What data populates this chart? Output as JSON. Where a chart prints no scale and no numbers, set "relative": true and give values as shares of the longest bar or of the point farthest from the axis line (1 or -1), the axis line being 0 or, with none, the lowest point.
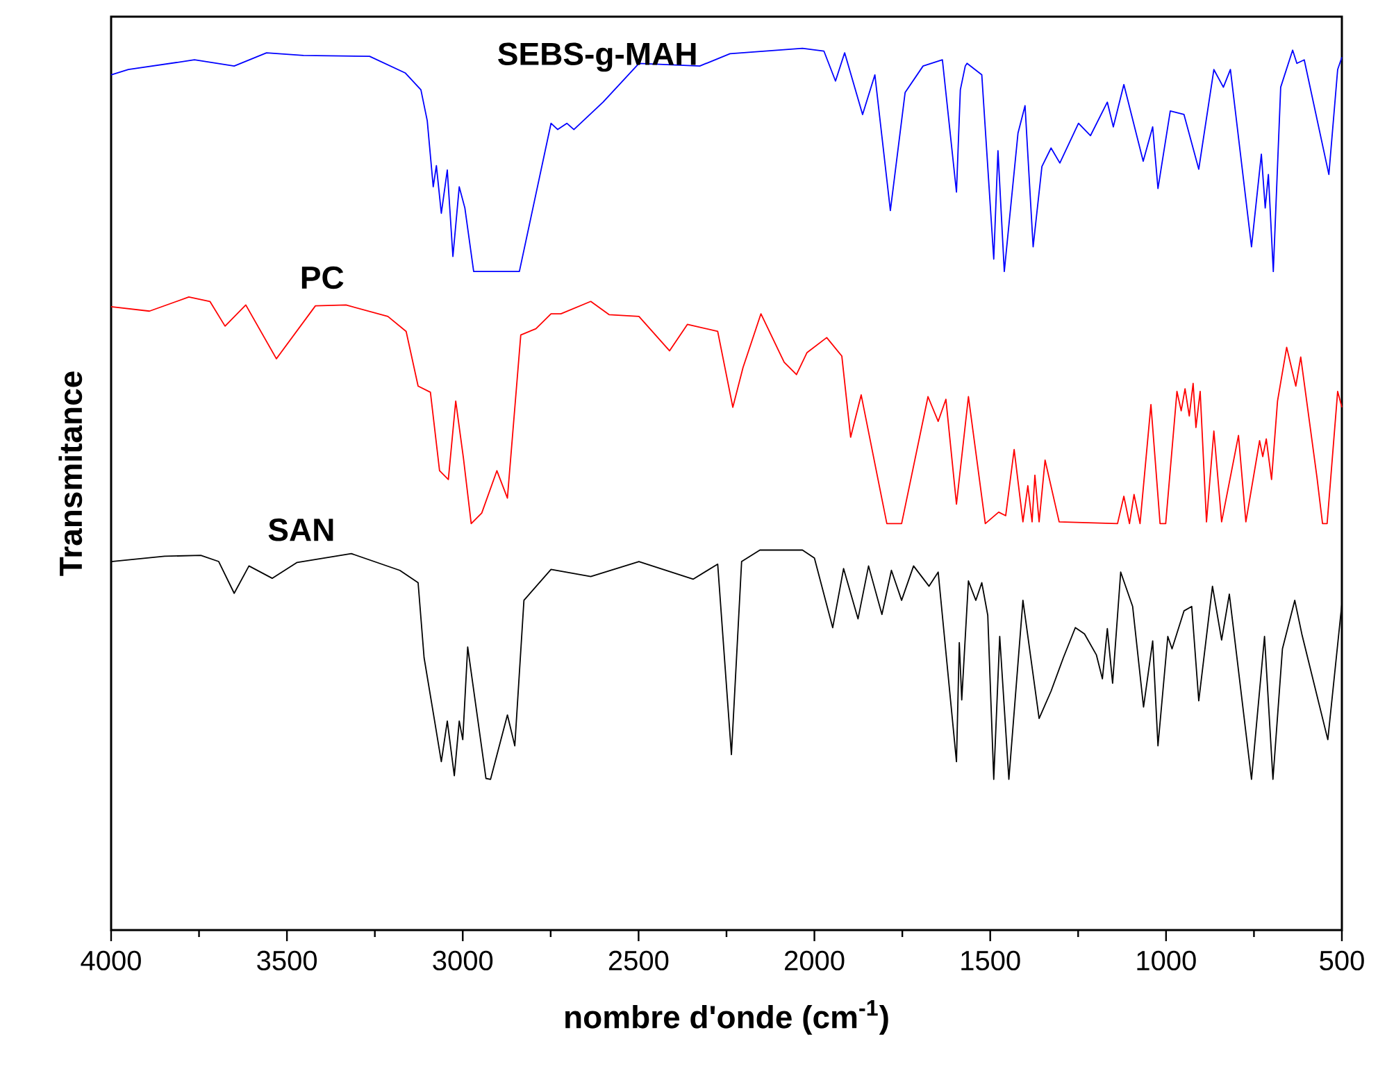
{
  "chart_data": {
    "type": "line",
    "relative": true,
    "xlabel": "nombre d'onde (cm$^{-1}$)",
    "ylabel": "Transmitance",
    "xlim": [
      4000,
      500
    ],
    "xticks": [
      4000,
      3500,
      3000,
      2500,
      2000,
      1500,
      1000,
      500
    ],
    "series": [
      {
        "name": "SEBS-g-MAH",
        "color": "#0000ff",
        "x": [
          4000,
          3951,
          3763,
          3650,
          3558,
          3453,
          3265,
          3163,
          3119,
          3101,
          3084,
          3075,
          3061,
          3044,
          3028,
          3010,
          2994,
          2969,
          2839,
          2749,
          2730,
          2704,
          2684,
          2601,
          2499,
          2326,
          2240,
          2034,
          1973,
          1940,
          1914,
          1863,
          1828,
          1784,
          1742,
          1691,
          1636,
          1596,
          1585,
          1571,
          1566,
          1524,
          1490,
          1478,
          1460,
          1421,
          1401,
          1378,
          1353,
          1327,
          1302,
          1249,
          1215,
          1167,
          1150,
          1120,
          1065,
          1038,
          1023,
          988,
          949,
          907,
          864,
          837,
          817,
          757,
          729,
          718,
          709,
          695,
          674,
          640,
          628,
          607,
          537,
          512,
          500
        ],
        "values": [
          0.97,
          0.976,
          0.987,
          0.98,
          0.995,
          0.992,
          0.991,
          0.972,
          0.953,
          0.918,
          0.843,
          0.867,
          0.813,
          0.862,
          0.764,
          0.843,
          0.819,
          0.747,
          0.747,
          0.915,
          0.908,
          0.915,
          0.908,
          0.939,
          0.983,
          0.98,
          0.994,
          1.0,
          0.997,
          0.963,
          0.995,
          0.925,
          0.97,
          0.816,
          0.95,
          0.98,
          0.987,
          0.837,
          0.953,
          0.98,
          0.983,
          0.97,
          0.761,
          0.884,
          0.747,
          0.904,
          0.935,
          0.775,
          0.866,
          0.887,
          0.87,
          0.915,
          0.901,
          0.939,
          0.911,
          0.959,
          0.872,
          0.911,
          0.841,
          0.929,
          0.925,
          0.863,
          0.976,
          0.956,
          0.976,
          0.775,
          0.88,
          0.819,
          0.857,
          0.747,
          0.956,
          0.998,
          0.983,
          0.987,
          0.857,
          0.976,
          0.99
        ]
      },
      {
        "name": "PC",
        "color": "#ff0000",
        "x": [
          4000,
          3891,
          3779,
          3719,
          3676,
          3617,
          3530,
          3419,
          3332,
          3213,
          3161,
          3127,
          3092,
          3066,
          3041,
          3020,
          2998,
          2976,
          2946,
          2903,
          2873,
          2835,
          2792,
          2749,
          2721,
          2636,
          2584,
          2499,
          2412,
          2361,
          2275,
          2232,
          2203,
          2152,
          2086,
          2051,
          2021,
          1965,
          1922,
          1897,
          1867,
          1794,
          1752,
          1677,
          1648,
          1626,
          1596,
          1562,
          1514,
          1476,
          1456,
          1432,
          1407,
          1393,
          1381,
          1373,
          1361,
          1344,
          1304,
          1138,
          1120,
          1104,
          1091,
          1074,
          1043,
          1017,
          1001,
          969,
          957,
          946,
          934,
          923,
          915,
          903,
          885,
          864,
          842,
          794,
          773,
          734,
          725,
          715,
          700,
          683,
          657,
          631,
          617,
          571,
          555,
          542,
          512,
          500
        ],
        "values": [
          0.707,
          0.702,
          0.718,
          0.713,
          0.685,
          0.709,
          0.648,
          0.708,
          0.709,
          0.696,
          0.679,
          0.617,
          0.61,
          0.521,
          0.511,
          0.6,
          0.535,
          0.461,
          0.473,
          0.521,
          0.49,
          0.675,
          0.682,
          0.699,
          0.699,
          0.713,
          0.698,
          0.696,
          0.657,
          0.687,
          0.679,
          0.593,
          0.638,
          0.699,
          0.644,
          0.63,
          0.655,
          0.672,
          0.651,
          0.559,
          0.607,
          0.461,
          0.461,
          0.605,
          0.577,
          0.602,
          0.483,
          0.605,
          0.461,
          0.474,
          0.47,
          0.545,
          0.463,
          0.504,
          0.463,
          0.516,
          0.463,
          0.533,
          0.463,
          0.461,
          0.492,
          0.461,
          0.494,
          0.461,
          0.596,
          0.461,
          0.461,
          0.611,
          0.589,
          0.614,
          0.583,
          0.62,
          0.57,
          0.611,
          0.463,
          0.566,
          0.463,
          0.561,
          0.463,
          0.555,
          0.537,
          0.557,
          0.511,
          0.6,
          0.661,
          0.617,
          0.65,
          0.514,
          0.461,
          0.461,
          0.611,
          0.593
        ]
      },
      {
        "name": "SAN",
        "color": "#000000",
        "x": [
          4000,
          3848,
          3745,
          3694,
          3650,
          3608,
          3542,
          3471,
          3317,
          3179,
          3127,
          3110,
          3080,
          3061,
          3044,
          3024,
          3010,
          3000,
          2986,
          2934,
          2921,
          2873,
          2852,
          2826,
          2749,
          2636,
          2499,
          2345,
          2275,
          2236,
          2207,
          2155,
          2034,
          2000,
          1948,
          1917,
          1876,
          1846,
          1808,
          1781,
          1752,
          1718,
          1674,
          1648,
          1596,
          1588,
          1581,
          1562,
          1541,
          1524,
          1507,
          1490,
          1473,
          1447,
          1407,
          1361,
          1327,
          1292,
          1258,
          1232,
          1198,
          1181,
          1167,
          1152,
          1129,
          1095,
          1064,
          1038,
          1023,
          995,
          983,
          949,
          927,
          907,
          868,
          842,
          820,
          757,
          720,
          696,
          669,
          634,
          614,
          540,
          500
        ],
        "values": [
          0.418,
          0.424,
          0.425,
          0.418,
          0.382,
          0.413,
          0.399,
          0.417,
          0.427,
          0.408,
          0.394,
          0.309,
          0.237,
          0.191,
          0.237,
          0.175,
          0.237,
          0.216,
          0.321,
          0.172,
          0.171,
          0.244,
          0.209,
          0.374,
          0.409,
          0.401,
          0.418,
          0.398,
          0.415,
          0.199,
          0.418,
          0.431,
          0.431,
          0.422,
          0.343,
          0.41,
          0.353,
          0.413,
          0.358,
          0.408,
          0.374,
          0.413,
          0.39,
          0.406,
          0.191,
          0.326,
          0.261,
          0.396,
          0.374,
          0.394,
          0.357,
          0.171,
          0.333,
          0.171,
          0.374,
          0.24,
          0.271,
          0.309,
          0.343,
          0.336,
          0.312,
          0.285,
          0.342,
          0.28,
          0.406,
          0.367,
          0.253,
          0.328,
          0.209,
          0.333,
          0.319,
          0.362,
          0.367,
          0.26,
          0.39,
          0.329,
          0.381,
          0.171,
          0.333,
          0.171,
          0.319,
          0.374,
          0.336,
          0.216,
          0.37
        ]
      }
    ]
  }
}
